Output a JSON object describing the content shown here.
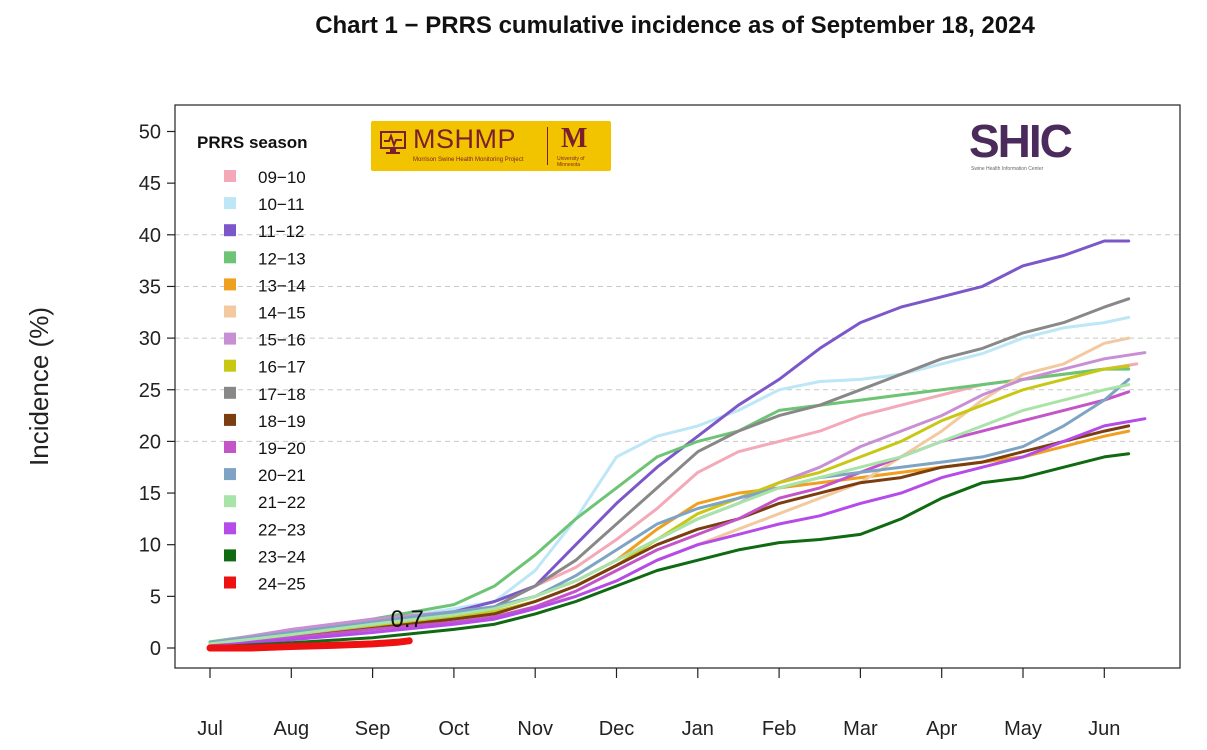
{
  "title": "Chart 1 − PRRS cumulative incidence as of September 18, 2024",
  "logos": {
    "mshmp_text": "MSHMP",
    "mshmp_subtext": "Morrison Swine Health Monitoring Project",
    "umn_mark": "M",
    "umn_text": "University of Minnesota",
    "shic_text": "SHIC",
    "shic_subtext": "Swine Health Information Center"
  },
  "chart_data": {
    "type": "line",
    "title": "Chart 1 − PRRS cumulative incidence as of September 18, 2024",
    "xlabel": "",
    "ylabel": "Incidence (%)",
    "legend_title": "PRRS season",
    "legend_position": "top-left",
    "ylim": [
      0,
      50
    ],
    "yticks": [
      0,
      5,
      10,
      15,
      20,
      25,
      30,
      35,
      40,
      45,
      50
    ],
    "dashed_gridlines": [
      20,
      25,
      30,
      35,
      40
    ],
    "xlim": [
      -0.1,
      12.0
    ],
    "xtick_labels": [
      "Jul",
      "Aug",
      "Sep",
      "Oct",
      "Nov",
      "Dec",
      "Jan",
      "Feb",
      "Mar",
      "Apr",
      "May",
      "Jun"
    ],
    "x_units": "month index from July (0 = Jul, 11 = Jun)",
    "annotation": {
      "text": "0.7",
      "x": 2.45,
      "y": 0.7
    },
    "series": [
      {
        "name": "09−10",
        "color": "#f4a9b8",
        "x": [
          0,
          1,
          2,
          3,
          3.5,
          4,
          4.5,
          5,
          5.5,
          6,
          6.5,
          7,
          7.5,
          8,
          8.5,
          9,
          9.5,
          10,
          10.5,
          11,
          11.4
        ],
        "y": [
          0.3,
          1.4,
          2.4,
          3.5,
          4.5,
          6.0,
          7.8,
          10.5,
          13.5,
          17.0,
          19.0,
          20.0,
          21.0,
          22.5,
          23.5,
          24.5,
          25.5,
          26.0,
          26.5,
          27.0,
          27.5
        ]
      },
      {
        "name": "10−11",
        "color": "#bde6f6",
        "x": [
          0,
          1,
          2,
          3,
          3.5,
          4,
          4.5,
          5,
          5.5,
          6,
          6.5,
          7,
          7.5,
          8,
          8.5,
          9,
          9.5,
          10,
          10.5,
          11,
          11.3
        ],
        "y": [
          0.5,
          1.6,
          2.6,
          3.8,
          4.5,
          7.5,
          12.5,
          18.5,
          20.5,
          21.5,
          23.0,
          25.0,
          25.8,
          26.0,
          26.5,
          27.5,
          28.5,
          30.0,
          31.0,
          31.5,
          32.0
        ]
      },
      {
        "name": "11−12",
        "color": "#7b57c9",
        "x": [
          0,
          1,
          2,
          3,
          3.5,
          4,
          4.5,
          5,
          5.5,
          6,
          6.5,
          7,
          7.5,
          8,
          8.5,
          9,
          9.5,
          10,
          10.5,
          11,
          11.3
        ],
        "y": [
          0.4,
          1.5,
          2.5,
          3.5,
          4.5,
          6.0,
          10.0,
          14.0,
          17.5,
          20.5,
          23.5,
          26.0,
          29.0,
          31.5,
          33.0,
          34.0,
          35.0,
          37.0,
          38.0,
          39.4,
          39.4
        ]
      },
      {
        "name": "12−13",
        "color": "#6cc474",
        "x": [
          0,
          1,
          2,
          3,
          3.5,
          4,
          4.5,
          5,
          5.5,
          6,
          6.5,
          7,
          7.5,
          8,
          8.5,
          9,
          9.5,
          10,
          10.5,
          11,
          11.3
        ],
        "y": [
          0.6,
          1.7,
          2.8,
          4.2,
          6.0,
          9.0,
          12.5,
          15.5,
          18.5,
          20.0,
          21.0,
          23.0,
          23.5,
          24.0,
          24.5,
          25.0,
          25.5,
          26.0,
          26.5,
          27.0,
          27.0
        ]
      },
      {
        "name": "13−14",
        "color": "#f0a020",
        "x": [
          0,
          1,
          2,
          3,
          3.5,
          4,
          4.5,
          5,
          5.5,
          6,
          6.5,
          7,
          7.5,
          8,
          8.5,
          9,
          9.5,
          10,
          10.5,
          11,
          11.3
        ],
        "y": [
          0.3,
          1.2,
          2.2,
          3.0,
          3.8,
          5.0,
          6.5,
          8.5,
          11.5,
          14.0,
          15.0,
          15.5,
          16.0,
          16.5,
          17.0,
          17.5,
          18.0,
          18.5,
          19.5,
          20.5,
          21.0
        ]
      },
      {
        "name": "14−15",
        "color": "#f3c9a0",
        "x": [
          0,
          1,
          2,
          3,
          3.5,
          4,
          4.5,
          5,
          5.5,
          6,
          6.5,
          7,
          7.5,
          8,
          8.5,
          9,
          9.5,
          10,
          10.5,
          11,
          11.3
        ],
        "y": [
          0.2,
          1.0,
          1.8,
          2.5,
          3.0,
          4.0,
          5.0,
          6.5,
          8.5,
          10.0,
          11.5,
          13.0,
          14.5,
          16.0,
          18.5,
          21.0,
          24.0,
          26.5,
          27.5,
          29.5,
          30.0
        ]
      },
      {
        "name": "15−16",
        "color": "#c98fd4",
        "x": [
          0,
          1,
          2,
          3,
          3.5,
          4,
          4.5,
          5,
          5.5,
          6,
          6.5,
          7,
          7.5,
          8,
          8.5,
          9,
          9.5,
          10,
          10.5,
          11,
          11.5
        ],
        "y": [
          0.5,
          1.8,
          2.8,
          3.5,
          4.0,
          5.0,
          6.5,
          8.5,
          10.5,
          12.5,
          14.0,
          16.0,
          17.5,
          19.5,
          21.0,
          22.5,
          24.5,
          26.0,
          27.0,
          28.0,
          28.6
        ]
      },
      {
        "name": "16−17",
        "color": "#c8c814",
        "x": [
          0,
          1,
          2,
          3,
          3.5,
          4,
          4.5,
          5,
          5.5,
          6,
          6.5,
          7,
          7.5,
          8,
          8.5,
          9,
          9.5,
          10,
          10.5,
          11,
          11.3
        ],
        "y": [
          0.4,
          1.3,
          2.2,
          3.0,
          3.5,
          4.5,
          6.0,
          8.0,
          10.5,
          13.0,
          14.5,
          16.0,
          17.0,
          18.5,
          20.0,
          22.0,
          23.5,
          25.0,
          26.0,
          27.0,
          27.3
        ]
      },
      {
        "name": "17−18",
        "color": "#888888",
        "x": [
          0,
          1,
          2,
          3,
          3.5,
          4,
          4.5,
          5,
          5.5,
          6,
          6.5,
          7,
          7.5,
          8,
          8.5,
          9,
          9.5,
          10,
          10.5,
          11,
          11.3
        ],
        "y": [
          0.3,
          1.3,
          2.3,
          3.3,
          4.0,
          6.0,
          8.5,
          12.0,
          15.5,
          19.0,
          21.0,
          22.5,
          23.5,
          25.0,
          26.5,
          28.0,
          29.0,
          30.5,
          31.5,
          33.0,
          33.8
        ]
      },
      {
        "name": "18−19",
        "color": "#7a3e10",
        "x": [
          0,
          1,
          2,
          3,
          3.5,
          4,
          4.5,
          5,
          5.5,
          6,
          6.5,
          7,
          7.5,
          8,
          8.5,
          9,
          9.5,
          10,
          10.5,
          11,
          11.3
        ],
        "y": [
          0.2,
          1.0,
          1.9,
          2.8,
          3.3,
          4.5,
          6.0,
          8.0,
          10.0,
          11.5,
          12.5,
          14.0,
          15.0,
          16.0,
          16.5,
          17.5,
          18.0,
          19.0,
          20.0,
          21.0,
          21.5
        ]
      },
      {
        "name": "19−20",
        "color": "#c455c8",
        "x": [
          0,
          1,
          2,
          3,
          3.5,
          4,
          4.5,
          5,
          5.5,
          6,
          6.5,
          7,
          7.5,
          8,
          8.5,
          9,
          9.5,
          10,
          10.5,
          11,
          11.3
        ],
        "y": [
          0.3,
          1.0,
          1.8,
          2.5,
          3.0,
          4.0,
          5.5,
          7.5,
          9.5,
          11.0,
          12.5,
          14.5,
          15.5,
          17.0,
          18.5,
          20.0,
          21.0,
          22.0,
          23.0,
          24.0,
          24.8
        ]
      },
      {
        "name": "20−21",
        "color": "#7da4c4",
        "x": [
          0,
          1,
          2,
          3,
          3.5,
          4,
          4.5,
          5,
          5.5,
          6,
          6.5,
          7,
          7.5,
          8,
          8.5,
          9,
          9.5,
          10,
          10.5,
          11,
          11.3
        ],
        "y": [
          0.5,
          1.5,
          2.5,
          3.5,
          4.0,
          5.0,
          7.0,
          9.5,
          12.0,
          13.5,
          14.5,
          15.5,
          16.5,
          17.0,
          17.5,
          18.0,
          18.5,
          19.5,
          21.5,
          24.0,
          26.0
        ]
      },
      {
        "name": "21−22",
        "color": "#a8e4a8",
        "x": [
          0,
          1,
          2,
          3,
          3.5,
          4,
          4.5,
          5,
          5.5,
          6,
          6.5,
          7,
          7.5,
          8,
          8.5,
          9,
          9.5,
          10,
          10.5,
          11,
          11.3
        ],
        "y": [
          0.4,
          1.3,
          2.3,
          3.2,
          3.8,
          5.0,
          6.5,
          8.5,
          10.5,
          12.5,
          14.0,
          15.5,
          16.5,
          17.5,
          18.5,
          20.0,
          21.5,
          23.0,
          24.0,
          25.0,
          25.5
        ]
      },
      {
        "name": "22−23",
        "color": "#b54be8",
        "x": [
          0,
          1,
          2,
          3,
          3.5,
          4,
          4.5,
          5,
          5.5,
          6,
          6.5,
          7,
          7.5,
          8,
          8.5,
          9,
          9.5,
          10,
          10.5,
          11,
          11.5
        ],
        "y": [
          0.2,
          0.8,
          1.5,
          2.3,
          2.8,
          3.8,
          5.0,
          6.5,
          8.5,
          10.0,
          11.0,
          12.0,
          12.8,
          14.0,
          15.0,
          16.5,
          17.5,
          18.5,
          20.0,
          21.5,
          22.2
        ]
      },
      {
        "name": "23−24",
        "color": "#0f6a12",
        "x": [
          0,
          1,
          2,
          3,
          3.5,
          4,
          4.5,
          5,
          5.5,
          6,
          6.5,
          7,
          7.5,
          8,
          8.5,
          9,
          9.5,
          10,
          10.5,
          11,
          11.3
        ],
        "y": [
          0.1,
          0.5,
          1.0,
          1.8,
          2.3,
          3.3,
          4.5,
          6.0,
          7.5,
          8.5,
          9.5,
          10.2,
          10.5,
          11.0,
          12.5,
          14.5,
          16.0,
          16.5,
          17.5,
          18.5,
          18.8
        ]
      },
      {
        "name": "24−25",
        "color": "#ee1111",
        "x": [
          0,
          0.5,
          1,
          1.5,
          2,
          2.3,
          2.45
        ],
        "y": [
          0.0,
          0.0,
          0.15,
          0.25,
          0.4,
          0.55,
          0.7
        ]
      }
    ]
  }
}
